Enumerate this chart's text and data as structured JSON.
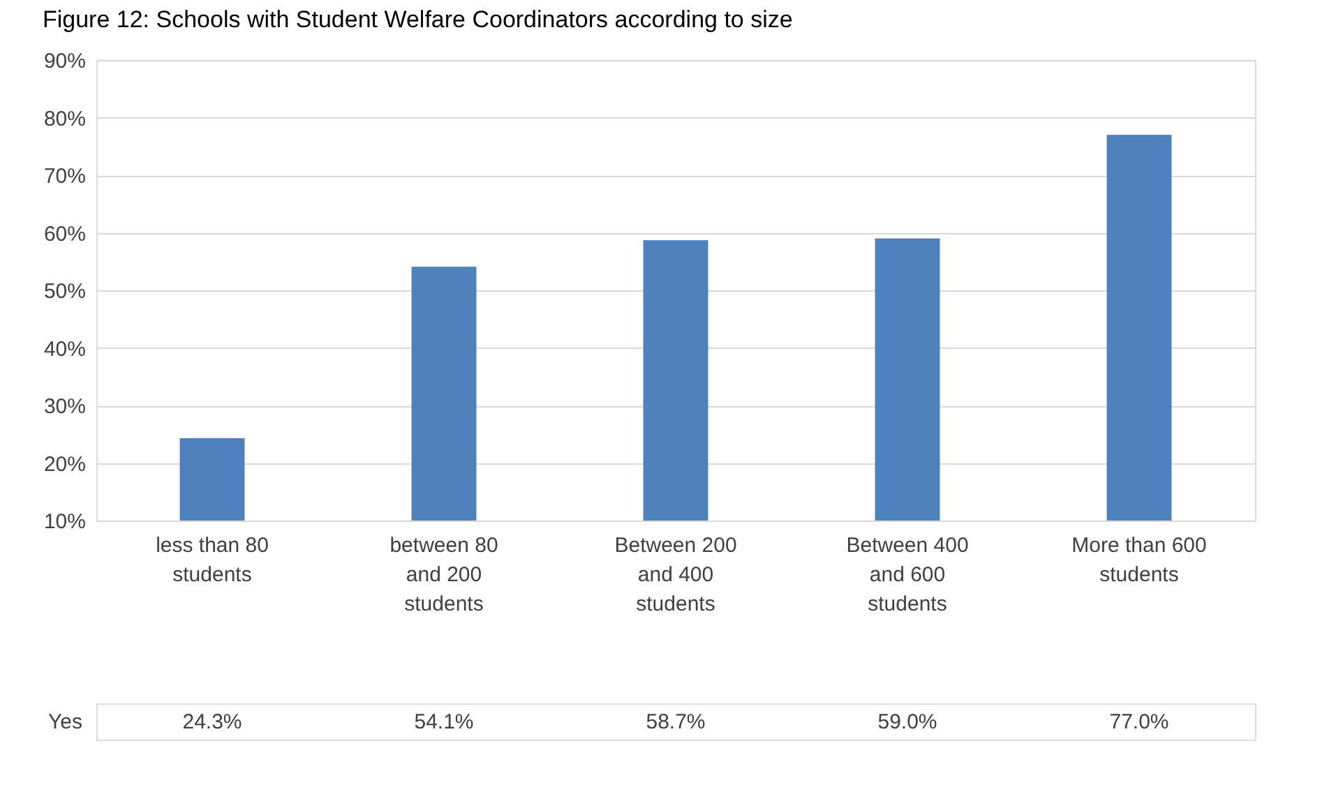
{
  "chart_data": {
    "type": "bar",
    "title": "Figure 12: Schools with Student Welfare Coordinators according to size",
    "categories": [
      "less than 80 students",
      "between 80 and 200 students",
      "Between 200 and 400 students",
      "Between 400 and 600 students",
      "More than 600 students"
    ],
    "series": [
      {
        "name": "Yes",
        "color": "#4f81bd",
        "values": [
          24.3,
          54.1,
          58.7,
          59.0,
          77.0
        ],
        "value_labels": [
          "24.3%",
          "54.1%",
          "58.7%",
          "59.0%",
          "77.0%"
        ]
      }
    ],
    "ylim": [
      10,
      90
    ],
    "yticks": [
      {
        "value": 10,
        "label": "10%"
      },
      {
        "value": 20,
        "label": "20%"
      },
      {
        "value": 30,
        "label": "30%"
      },
      {
        "value": 40,
        "label": "40%"
      },
      {
        "value": 50,
        "label": "50%"
      },
      {
        "value": 60,
        "label": "60%"
      },
      {
        "value": 70,
        "label": "70%"
      },
      {
        "value": 80,
        "label": "80%"
      },
      {
        "value": 90,
        "label": "90%"
      }
    ],
    "grid": "y",
    "legend": false
  }
}
